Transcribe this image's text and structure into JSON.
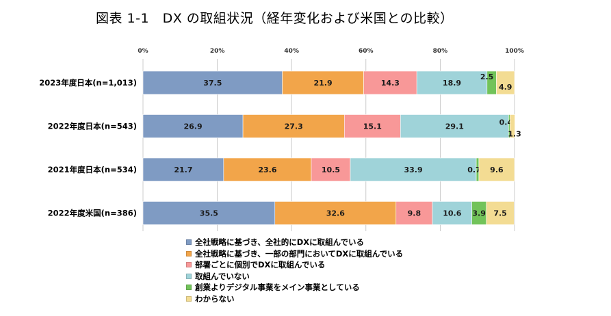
{
  "title": "図表 1-1　DX の取組状況（経年変化および米国との比較）",
  "chart_data": {
    "type": "bar",
    "orientation": "horizontal",
    "stacked": "percent",
    "title": "図表 1-1　DX の取組状況（経年変化および米国との比較）",
    "categories": [
      "2023年度日本(n=1,013)",
      "2022年度日本(n=543)",
      "2021年度日本(n=534)",
      "2022年度米国(n=386)"
    ],
    "xlim": [
      0,
      100
    ],
    "x_ticks": [
      "0%",
      "20%",
      "40%",
      "60%",
      "80%",
      "100%"
    ],
    "x_tick_values": [
      0,
      20,
      40,
      60,
      80,
      100
    ],
    "grid": true,
    "legend_position": "bottom",
    "series": [
      {
        "name": "全社戦略に基づき、全社的にDXに取組んでいる",
        "color": "#7f9bc3",
        "values": [
          37.5,
          26.9,
          21.7,
          35.5
        ],
        "labels": [
          "37.5",
          "26.9",
          "21.7",
          "35.5"
        ]
      },
      {
        "name": "全社戦略に基づき、一部の部門においてDXに取組んでいる",
        "color": "#f2a54a",
        "values": [
          21.9,
          27.3,
          23.6,
          32.6
        ],
        "labels": [
          "21.9",
          "27.3",
          "23.6",
          "32.6"
        ]
      },
      {
        "name": "部署ごとに個別でDXに取組んでいる",
        "color": "#f89898",
        "values": [
          14.3,
          15.1,
          10.5,
          9.8
        ],
        "labels": [
          "14.3",
          "15.1",
          "10.5",
          "9.8"
        ]
      },
      {
        "name": "取組んでいない",
        "color": "#9fd3d9",
        "values": [
          18.9,
          29.1,
          33.9,
          10.6
        ],
        "labels": [
          "18.9",
          "29.1",
          "33.9",
          "10.6"
        ]
      },
      {
        "name": "創業よりデジタル事業をメイン事業としている",
        "color": "#72c35a",
        "values": [
          2.5,
          0.4,
          0.7,
          3.9
        ],
        "labels": [
          "2.5",
          "0.4",
          "0.7",
          "3.9"
        ]
      },
      {
        "name": "わからない",
        "color": "#f3dc93",
        "values": [
          4.9,
          1.3,
          9.6,
          7.5
        ],
        "labels": [
          "4.9",
          "1.3",
          "9.6",
          "7.5"
        ]
      }
    ]
  }
}
